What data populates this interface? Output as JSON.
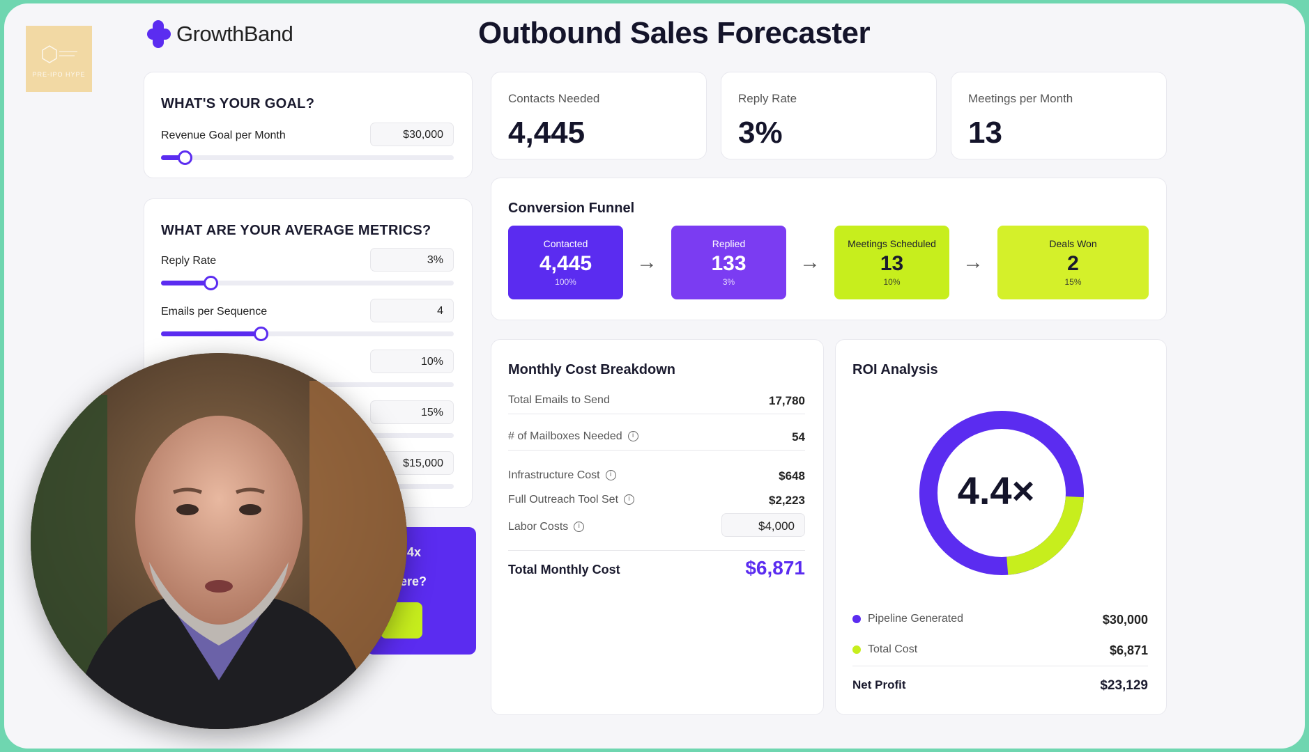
{
  "app": {
    "brand": "GrowthBand",
    "title": "Outbound Sales Forecaster",
    "watermark": "PRE-IPO HYPE"
  },
  "goal": {
    "title": "WHAT'S YOUR GOAL?",
    "revenue_label": "Revenue Goal per Month",
    "revenue_value": "$30,000",
    "revenue_slider_fraction": 0.08
  },
  "metrics": {
    "title": "WHAT ARE YOUR AVERAGE METRICS?",
    "reply_rate_label": "Reply Rate",
    "reply_rate_value": "3%",
    "reply_rate_slider_fraction": 0.17,
    "emails_label": "Emails per Sequence",
    "emails_value": "4",
    "emails_slider_fraction": 0.34,
    "meeting_rate_value": "10%",
    "close_rate_value": "15%",
    "deal_value": "$15,000"
  },
  "stats": [
    {
      "label": "Contacts Needed",
      "value": "4,445"
    },
    {
      "label": "Reply Rate",
      "value": "3%"
    },
    {
      "label": "Meetings per Month",
      "value": "13"
    }
  ],
  "funnel": {
    "title": "Conversion Funnel",
    "stages": [
      {
        "label": "Contacted",
        "value": "4,445",
        "pct": "100%"
      },
      {
        "label": "Replied",
        "value": "133",
        "pct": "3%"
      },
      {
        "label": "Meetings Scheduled",
        "value": "13",
        "pct": "10%"
      },
      {
        "label": "Deals Won",
        "value": "2",
        "pct": "15%"
      }
    ]
  },
  "cost": {
    "title": "Monthly Cost Breakdown",
    "total_emails_label": "Total Emails to Send",
    "total_emails_value": "17,780",
    "mailboxes_label": "# of Mailboxes Needed",
    "mailboxes_value": "54",
    "infra_label": "Infrastructure Cost",
    "infra_value": "$648",
    "tools_label": "Full Outreach Tool Set",
    "tools_value": "$2,223",
    "labor_label": "Labor Costs",
    "labor_value": "$4,000",
    "total_label": "Total Monthly Cost",
    "total_value": "$6,871"
  },
  "roi": {
    "title": "ROI Analysis",
    "multiple": "4.4×",
    "pipeline_label": "Pipeline Generated",
    "pipeline_value": "$30,000",
    "cost_label": "Total Cost",
    "cost_value": "$6,871",
    "profit_label": "Net Profit",
    "profit_value": "$23,129",
    "cost_share": 0.229
  },
  "cta": {
    "line1": "4x",
    "line2": "ere?"
  },
  "colors": {
    "purple": "#5b2cf0",
    "purple_light": "#7b3cf2",
    "lime": "#c7ee1d",
    "lime_dark": "#d4f02a"
  }
}
